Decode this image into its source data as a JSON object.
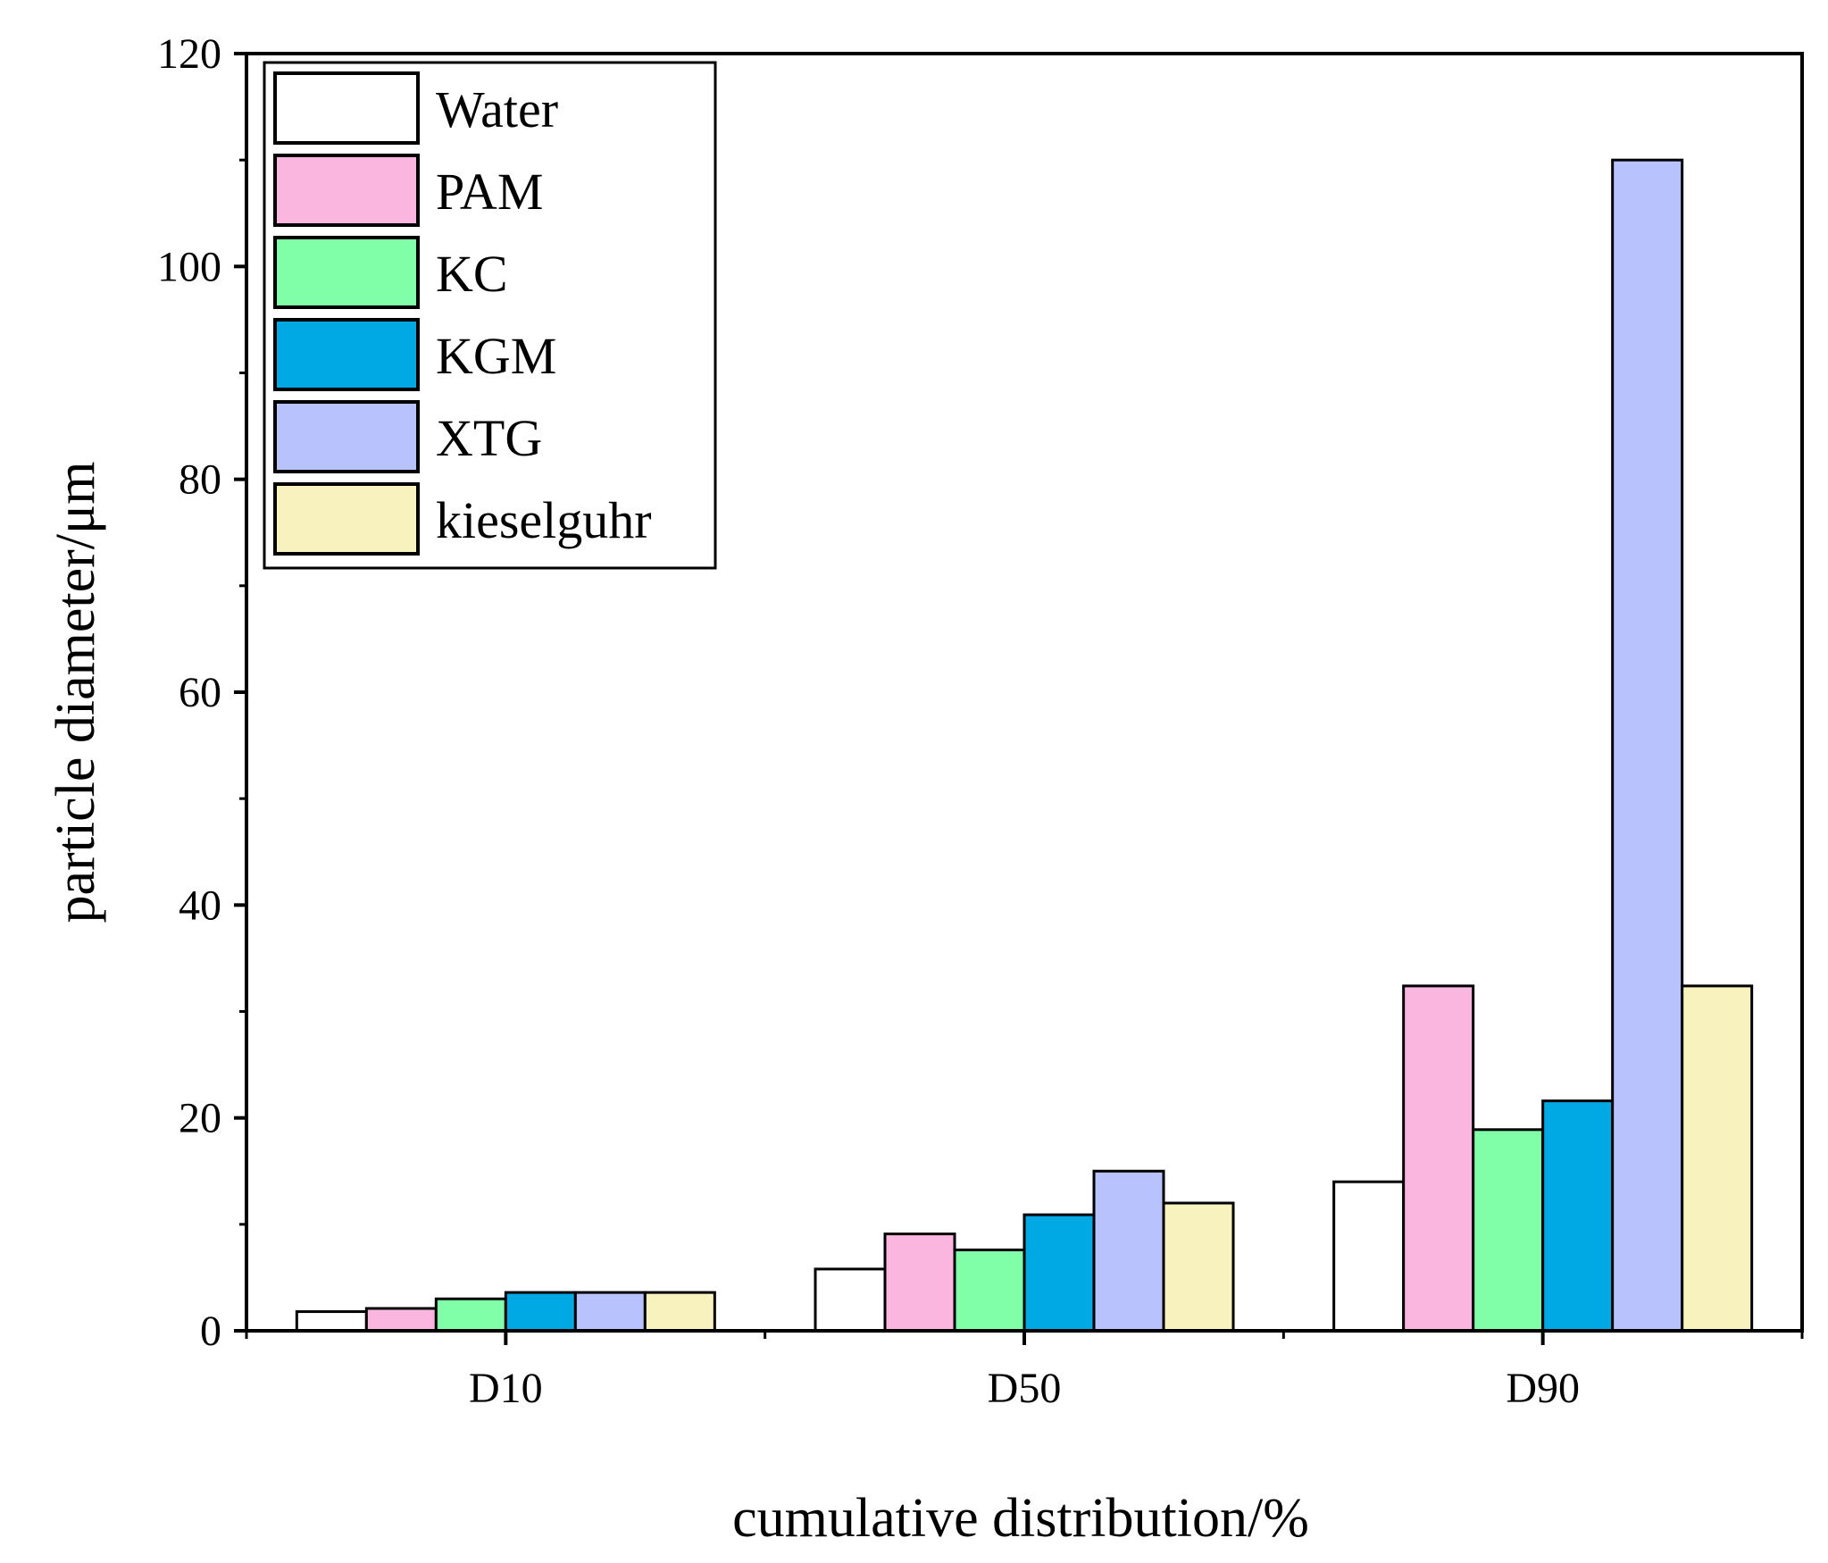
{
  "chart_data": {
    "type": "bar",
    "title": "",
    "xlabel": "cumulative distribution/%",
    "ylabel": "particle diameter/μm",
    "categories": [
      "D10",
      "D50",
      "D90"
    ],
    "ylim": [
      0,
      120
    ],
    "yticks": [
      0,
      20,
      40,
      60,
      80,
      100,
      120
    ],
    "grid": false,
    "legend_position": "top-left",
    "series": [
      {
        "name": "Water",
        "color": "#ffffff",
        "values": [
          1.8,
          5.8,
          14.0
        ]
      },
      {
        "name": "PAM",
        "color": "#fbb6df",
        "values": [
          2.1,
          9.1,
          32.4
        ]
      },
      {
        "name": "KC",
        "color": "#80ffa8",
        "values": [
          3.0,
          7.6,
          18.9
        ]
      },
      {
        "name": "KGM",
        "color": "#00a8e4",
        "values": [
          3.6,
          10.9,
          21.6
        ]
      },
      {
        "name": "XTG",
        "color": "#b8c2fc",
        "values": [
          3.6,
          15.0,
          110.0
        ]
      },
      {
        "name": "kieselguhr",
        "color": "#f8f3be",
        "values": [
          3.6,
          12.0,
          32.4
        ]
      }
    ]
  }
}
